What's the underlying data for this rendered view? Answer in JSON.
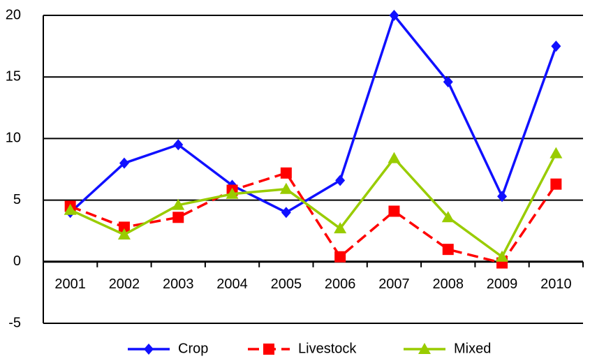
{
  "chart_data": {
    "type": "line",
    "categories": [
      "2001",
      "2002",
      "2003",
      "2004",
      "2005",
      "2006",
      "2007",
      "2008",
      "2009",
      "2010"
    ],
    "series": [
      {
        "name": "Crop",
        "color": "#1010ff",
        "marker": "diamond",
        "dash": false,
        "values": [
          4.0,
          8.0,
          9.5,
          6.2,
          4.0,
          6.6,
          20.0,
          14.6,
          5.3,
          17.5
        ]
      },
      {
        "name": "Livestock",
        "color": "#ff0000",
        "marker": "square",
        "dash": true,
        "values": [
          4.5,
          2.8,
          3.6,
          5.8,
          7.2,
          0.4,
          4.1,
          1.0,
          -0.1,
          6.3
        ]
      },
      {
        "name": "Mixed",
        "color": "#99cc00",
        "marker": "triangle",
        "dash": false,
        "values": [
          4.2,
          2.2,
          4.6,
          5.5,
          5.9,
          2.7,
          8.4,
          3.6,
          0.4,
          8.8
        ]
      }
    ],
    "ylim": [
      -5,
      20
    ],
    "yticks": [
      -5,
      0,
      5,
      10,
      15,
      20
    ],
    "grid": true,
    "legend": "bottom"
  }
}
